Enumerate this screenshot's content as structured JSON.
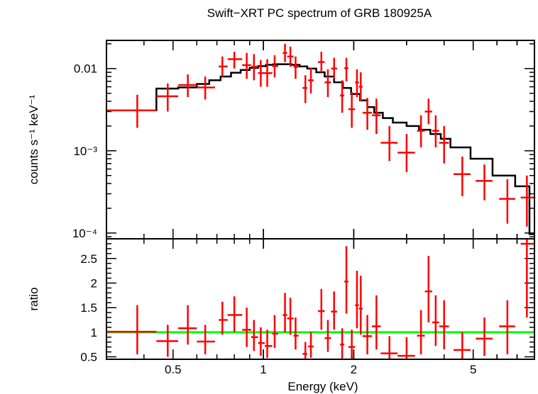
{
  "chart_data": {
    "title": "Swift−XRT PC spectrum of GRB 180925A",
    "type": "scatter",
    "xlabel": "Energy (keV)",
    "xscale": "log",
    "xlim": [
      0.3,
      8.0
    ],
    "x_ticks": [
      {
        "v": 0.5,
        "label": "0.5"
      },
      {
        "v": 1,
        "label": "1"
      },
      {
        "v": 2,
        "label": "2"
      },
      {
        "v": 5,
        "label": "5"
      }
    ],
    "colors": {
      "data": "#ff0000",
      "model": "#000000",
      "unity": "#00ff00"
    },
    "panels": [
      {
        "id": "spectrum",
        "ylabel": "counts s⁻¹ keV⁻¹",
        "yscale": "log",
        "ylim": [
          8.5e-05,
          0.022
        ],
        "y_ticks": [
          {
            "v": 0.01,
            "label": "0.01"
          },
          {
            "v": 0.001,
            "label": "10⁻³"
          },
          {
            "v": 0.0001,
            "label": "10⁻⁴"
          }
        ],
        "series": [
          {
            "kind": "errorbar",
            "points": [
              {
                "xlo": 0.3,
                "x": 0.38,
                "xhi": 0.44,
                "y": 0.0031,
                "ylo": 0.0019,
                "yhi": 0.0048
              },
              {
                "xlo": 0.44,
                "x": 0.48,
                "xhi": 0.52,
                "y": 0.0046,
                "ylo": 0.003,
                "yhi": 0.0066
              },
              {
                "xlo": 0.52,
                "x": 0.56,
                "xhi": 0.6,
                "y": 0.0063,
                "ylo": 0.0045,
                "yhi": 0.0085
              },
              {
                "xlo": 0.6,
                "x": 0.64,
                "xhi": 0.69,
                "y": 0.0059,
                "ylo": 0.0042,
                "yhi": 0.008
              },
              {
                "xlo": 0.71,
                "x": 0.73,
                "xhi": 0.76,
                "y": 0.0106,
                "ylo": 0.008,
                "yhi": 0.014
              },
              {
                "xlo": 0.76,
                "x": 0.8,
                "xhi": 0.85,
                "y": 0.013,
                "ylo": 0.01,
                "yhi": 0.016
              },
              {
                "xlo": 0.85,
                "x": 0.88,
                "xhi": 0.91,
                "y": 0.011,
                "ylo": 0.0075,
                "yhi": 0.0155
              },
              {
                "xlo": 0.91,
                "x": 0.93,
                "xhi": 0.96,
                "y": 0.0105,
                "ylo": 0.0072,
                "yhi": 0.015
              },
              {
                "xlo": 0.96,
                "x": 0.98,
                "xhi": 1.01,
                "y": 0.0088,
                "ylo": 0.006,
                "yhi": 0.0127
              },
              {
                "xlo": 1.01,
                "x": 1.03,
                "xhi": 1.07,
                "y": 0.0088,
                "ylo": 0.006,
                "yhi": 0.013
              },
              {
                "xlo": 1.07,
                "x": 1.09,
                "xhi": 1.12,
                "y": 0.0107,
                "ylo": 0.0078,
                "yhi": 0.0145
              },
              {
                "xlo": 1.16,
                "x": 1.18,
                "xhi": 1.2,
                "y": 0.0155,
                "ylo": 0.012,
                "yhi": 0.02
              },
              {
                "xlo": 1.2,
                "x": 1.23,
                "xhi": 1.26,
                "y": 0.014,
                "ylo": 0.0105,
                "yhi": 0.0185
              },
              {
                "xlo": 1.26,
                "x": 1.28,
                "xhi": 1.31,
                "y": 0.0105,
                "ylo": 0.0075,
                "yhi": 0.014
              },
              {
                "xlo": 1.35,
                "x": 1.38,
                "xhi": 1.4,
                "y": 0.0058,
                "ylo": 0.0038,
                "yhi": 0.0083
              },
              {
                "xlo": 1.41,
                "x": 1.44,
                "xhi": 1.47,
                "y": 0.0072,
                "ylo": 0.005,
                "yhi": 0.0102
              },
              {
                "xlo": 1.52,
                "x": 1.56,
                "xhi": 1.6,
                "y": 0.012,
                "ylo": 0.009,
                "yhi": 0.016
              },
              {
                "xlo": 1.6,
                "x": 1.64,
                "xhi": 1.68,
                "y": 0.0068,
                "ylo": 0.0045,
                "yhi": 0.0098
              },
              {
                "xlo": 1.68,
                "x": 1.72,
                "xhi": 1.76,
                "y": 0.01,
                "ylo": 0.0075,
                "yhi": 0.0135
              },
              {
                "xlo": 1.8,
                "x": 1.83,
                "xhi": 1.86,
                "y": 0.0047,
                "ylo": 0.0029,
                "yhi": 0.0072
              },
              {
                "xlo": 1.86,
                "x": 1.89,
                "xhi": 1.92,
                "y": 0.0101,
                "ylo": 0.007,
                "yhi": 0.0135
              },
              {
                "xlo": 1.92,
                "x": 1.97,
                "xhi": 2.02,
                "y": 0.0032,
                "ylo": 0.0019,
                "yhi": 0.0052
              },
              {
                "xlo": 2.02,
                "x": 2.05,
                "xhi": 2.08,
                "y": 0.0068,
                "ylo": 0.0045,
                "yhi": 0.0098
              },
              {
                "xlo": 2.08,
                "x": 2.11,
                "xhi": 2.14,
                "y": 0.006,
                "ylo": 0.004,
                "yhi": 0.009
              },
              {
                "xlo": 2.14,
                "x": 2.22,
                "xhi": 2.3,
                "y": 0.0029,
                "ylo": 0.0018,
                "yhi": 0.0044
              },
              {
                "xlo": 2.3,
                "x": 2.38,
                "xhi": 2.46,
                "y": 0.0027,
                "ylo": 0.0016,
                "yhi": 0.0043
              },
              {
                "xlo": 2.46,
                "x": 2.63,
                "xhi": 2.8,
                "y": 0.00125,
                "ylo": 0.00075,
                "yhi": 0.002
              },
              {
                "xlo": 2.8,
                "x": 3.0,
                "xhi": 3.2,
                "y": 0.00095,
                "ylo": 0.00055,
                "yhi": 0.0016
              },
              {
                "xlo": 3.25,
                "x": 3.35,
                "xhi": 3.45,
                "y": 0.00175,
                "ylo": 0.0011,
                "yhi": 0.0027
              },
              {
                "xlo": 3.45,
                "x": 3.55,
                "xhi": 3.65,
                "y": 0.003,
                "ylo": 0.0021,
                "yhi": 0.0043
              },
              {
                "xlo": 3.65,
                "x": 3.75,
                "xhi": 3.85,
                "y": 0.00175,
                "ylo": 0.0011,
                "yhi": 0.0027
              },
              {
                "xlo": 3.85,
                "x": 4.0,
                "xhi": 4.15,
                "y": 0.00125,
                "ylo": 0.0007,
                "yhi": 0.002
              },
              {
                "xlo": 4.3,
                "x": 4.6,
                "xhi": 4.9,
                "y": 0.00052,
                "ylo": 0.00028,
                "yhi": 0.00085
              },
              {
                "xlo": 5.1,
                "x": 5.45,
                "xhi": 5.8,
                "y": 0.00043,
                "ylo": 0.00025,
                "yhi": 0.00068
              },
              {
                "xlo": 6.1,
                "x": 6.5,
                "xhi": 6.9,
                "y": 0.00026,
                "ylo": 0.00013,
                "yhi": 0.00045
              },
              {
                "xlo": 7.2,
                "x": 7.55,
                "xhi": 8.0,
                "y": 0.00027,
                "ylo": 0.00012,
                "yhi": 0.0005
              }
            ]
          },
          {
            "kind": "step",
            "points": [
              [
                0.3,
                0.0031
              ],
              [
                0.44,
                0.0057
              ],
              [
                0.52,
                0.0059
              ],
              [
                0.6,
                0.0065
              ],
              [
                0.66,
                0.0072
              ],
              [
                0.72,
                0.008
              ],
              [
                0.78,
                0.0089
              ],
              [
                0.84,
                0.0096
              ],
              [
                0.9,
                0.0102
              ],
              [
                0.96,
                0.0107
              ],
              [
                1.02,
                0.0111
              ],
              [
                1.08,
                0.0113
              ],
              [
                1.16,
                0.0113
              ],
              [
                1.24,
                0.0111
              ],
              [
                1.32,
                0.0106
              ],
              [
                1.4,
                0.01
              ],
              [
                1.5,
                0.009
              ],
              [
                1.6,
                0.008
              ],
              [
                1.72,
                0.0068
              ],
              [
                1.84,
                0.0058
              ],
              [
                1.96,
                0.0049
              ],
              [
                2.1,
                0.0041
              ],
              [
                2.22,
                0.0034
              ],
              [
                2.34,
                0.0029
              ],
              [
                2.5,
                0.0025
              ],
              [
                2.7,
                0.0022
              ],
              [
                3.0,
                0.002
              ],
              [
                3.3,
                0.0018
              ],
              [
                3.6,
                0.0016
              ],
              [
                3.9,
                0.0014
              ],
              [
                4.2,
                0.0011
              ],
              [
                4.9,
                0.0008
              ],
              [
                5.8,
                0.0005
              ],
              [
                6.9,
                0.00037
              ],
              [
                7.7,
                9.7e-05
              ],
              [
                8.0,
                9.7e-05
              ]
            ]
          }
        ]
      },
      {
        "id": "ratio",
        "ylabel": "ratio",
        "yscale": "linear",
        "ylim": [
          0.45,
          2.9
        ],
        "y_ticks": [
          {
            "v": 0.5,
            "label": "0.5"
          },
          {
            "v": 1,
            "label": "1"
          },
          {
            "v": 1.5,
            "label": "1.5"
          },
          {
            "v": 2,
            "label": "2"
          },
          {
            "v": 2.5,
            "label": "2.5"
          }
        ],
        "reference_line": 1,
        "series": [
          {
            "kind": "errorbar",
            "points": [
              {
                "xlo": 0.3,
                "x": 0.38,
                "xhi": 0.44,
                "y": 1.01,
                "ylo": 0.55,
                "yhi": 1.55
              },
              {
                "xlo": 0.44,
                "x": 0.48,
                "xhi": 0.52,
                "y": 0.82,
                "ylo": 0.5,
                "yhi": 1.15
              },
              {
                "xlo": 0.52,
                "x": 0.56,
                "xhi": 0.6,
                "y": 1.08,
                "ylo": 0.75,
                "yhi": 1.55
              },
              {
                "xlo": 0.6,
                "x": 0.64,
                "xhi": 0.69,
                "y": 0.81,
                "ylo": 0.55,
                "yhi": 1.15
              },
              {
                "xlo": 0.71,
                "x": 0.73,
                "xhi": 0.76,
                "y": 1.25,
                "ylo": 0.95,
                "yhi": 1.62
              },
              {
                "xlo": 0.76,
                "x": 0.8,
                "xhi": 0.85,
                "y": 1.35,
                "ylo": 1.0,
                "yhi": 1.73
              },
              {
                "xlo": 0.85,
                "x": 0.88,
                "xhi": 0.91,
                "y": 1.05,
                "ylo": 0.7,
                "yhi": 1.5
              },
              {
                "xlo": 0.91,
                "x": 0.93,
                "xhi": 0.96,
                "y": 0.9,
                "ylo": 0.62,
                "yhi": 1.25
              },
              {
                "xlo": 0.96,
                "x": 0.98,
                "xhi": 1.01,
                "y": 0.78,
                "ylo": 0.52,
                "yhi": 1.1
              },
              {
                "xlo": 1.01,
                "x": 1.03,
                "xhi": 1.07,
                "y": 0.72,
                "ylo": 0.48,
                "yhi": 1.05
              },
              {
                "xlo": 1.07,
                "x": 1.09,
                "xhi": 1.12,
                "y": 0.97,
                "ylo": 0.68,
                "yhi": 1.35
              },
              {
                "xlo": 1.16,
                "x": 1.18,
                "xhi": 1.2,
                "y": 1.35,
                "ylo": 1.0,
                "yhi": 1.8
              },
              {
                "xlo": 1.2,
                "x": 1.23,
                "xhi": 1.26,
                "y": 1.28,
                "ylo": 0.95,
                "yhi": 1.7
              },
              {
                "xlo": 1.26,
                "x": 1.28,
                "xhi": 1.31,
                "y": 0.93,
                "ylo": 0.65,
                "yhi": 1.3
              },
              {
                "xlo": 1.35,
                "x": 1.38,
                "xhi": 1.4,
                "y": 0.56,
                "ylo": 0.4,
                "yhi": 0.8
              },
              {
                "xlo": 1.41,
                "x": 1.44,
                "xhi": 1.47,
                "y": 0.71,
                "ylo": 0.48,
                "yhi": 1.0
              },
              {
                "xlo": 1.52,
                "x": 1.56,
                "xhi": 1.6,
                "y": 1.43,
                "ylo": 1.05,
                "yhi": 1.88
              },
              {
                "xlo": 1.6,
                "x": 1.64,
                "xhi": 1.68,
                "y": 0.88,
                "ylo": 0.6,
                "yhi": 1.25
              },
              {
                "xlo": 1.68,
                "x": 1.72,
                "xhi": 1.76,
                "y": 1.42,
                "ylo": 1.05,
                "yhi": 1.83
              },
              {
                "xlo": 1.8,
                "x": 1.83,
                "xhi": 1.86,
                "y": 0.75,
                "ylo": 0.45,
                "yhi": 1.08
              },
              {
                "xlo": 1.86,
                "x": 1.89,
                "xhi": 1.92,
                "y": 2.03,
                "ylo": 1.38,
                "yhi": 2.75
              },
              {
                "xlo": 1.92,
                "x": 1.97,
                "xhi": 2.02,
                "y": 0.7,
                "ylo": 0.4,
                "yhi": 1.05
              },
              {
                "xlo": 2.02,
                "x": 2.05,
                "xhi": 2.08,
                "y": 1.55,
                "ylo": 1.08,
                "yhi": 2.25
              },
              {
                "xlo": 2.08,
                "x": 2.11,
                "xhi": 2.14,
                "y": 1.48,
                "ylo": 0.95,
                "yhi": 2.15
              },
              {
                "xlo": 2.14,
                "x": 2.22,
                "xhi": 2.3,
                "y": 0.92,
                "ylo": 0.55,
                "yhi": 1.35
              },
              {
                "xlo": 2.3,
                "x": 2.38,
                "xhi": 2.46,
                "y": 1.12,
                "ylo": 0.65,
                "yhi": 1.75
              },
              {
                "xlo": 2.46,
                "x": 2.63,
                "xhi": 2.8,
                "y": 0.57,
                "ylo": 0.38,
                "yhi": 0.92
              },
              {
                "xlo": 2.8,
                "x": 3.0,
                "xhi": 3.2,
                "y": 0.52,
                "ylo": 0.32,
                "yhi": 0.9
              },
              {
                "xlo": 3.25,
                "x": 3.35,
                "xhi": 3.45,
                "y": 0.93,
                "ylo": 0.55,
                "yhi": 1.45
              },
              {
                "xlo": 3.45,
                "x": 3.55,
                "xhi": 3.65,
                "y": 1.83,
                "ylo": 1.2,
                "yhi": 2.55
              },
              {
                "xlo": 3.65,
                "x": 3.75,
                "xhi": 3.85,
                "y": 1.2,
                "ylo": 0.72,
                "yhi": 1.75
              },
              {
                "xlo": 3.85,
                "x": 4.0,
                "xhi": 4.15,
                "y": 1.12,
                "ylo": 0.65,
                "yhi": 1.65
              },
              {
                "xlo": 4.3,
                "x": 4.6,
                "xhi": 4.9,
                "y": 0.64,
                "ylo": 0.38,
                "yhi": 1.0
              },
              {
                "xlo": 5.1,
                "x": 5.45,
                "xhi": 5.8,
                "y": 0.87,
                "ylo": 0.52,
                "yhi": 1.3
              },
              {
                "xlo": 6.1,
                "x": 6.5,
                "xhi": 6.9,
                "y": 1.12,
                "ylo": 0.55,
                "yhi": 1.65
              },
              {
                "xlo": 7.2,
                "x": 7.55,
                "xhi": 8.0,
                "y": 2.8,
                "ylo": 1.3,
                "yhi": 4.0
              }
            ]
          }
        ]
      }
    ]
  }
}
